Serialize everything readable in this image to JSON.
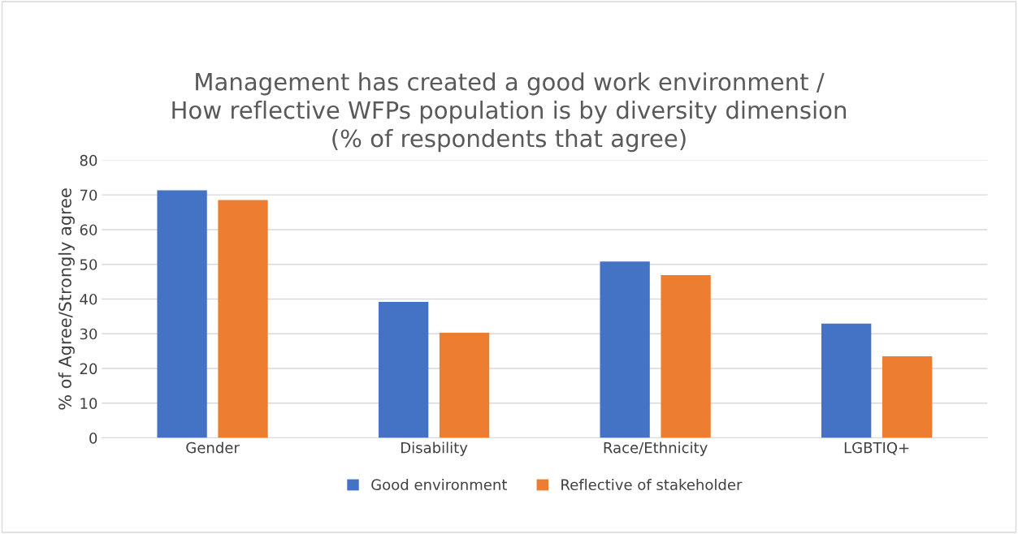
{
  "chart_data": {
    "type": "bar",
    "title": "Management has created a good work environment /\nHow reflective WFPs population is by diversity dimension\n(% of respondents that agree)",
    "ylabel": "% of Agree/Strongly agree",
    "categories": [
      "Gender",
      "Disability",
      "Race/Ethnicity",
      "LGBTIQ+"
    ],
    "series": [
      {
        "name": "Good environment",
        "color": "#4472c4",
        "values": [
          71.3,
          39.2,
          50.8,
          32.9
        ]
      },
      {
        "name": "Reflective of stakeholder",
        "color": "#ed7d31",
        "values": [
          68.5,
          30.3,
          46.9,
          23.5
        ]
      }
    ],
    "ylim": [
      0,
      80
    ],
    "yticks": [
      0,
      10,
      20,
      30,
      40,
      50,
      60,
      70,
      80
    ],
    "grid": "y",
    "legend": "bottom"
  }
}
